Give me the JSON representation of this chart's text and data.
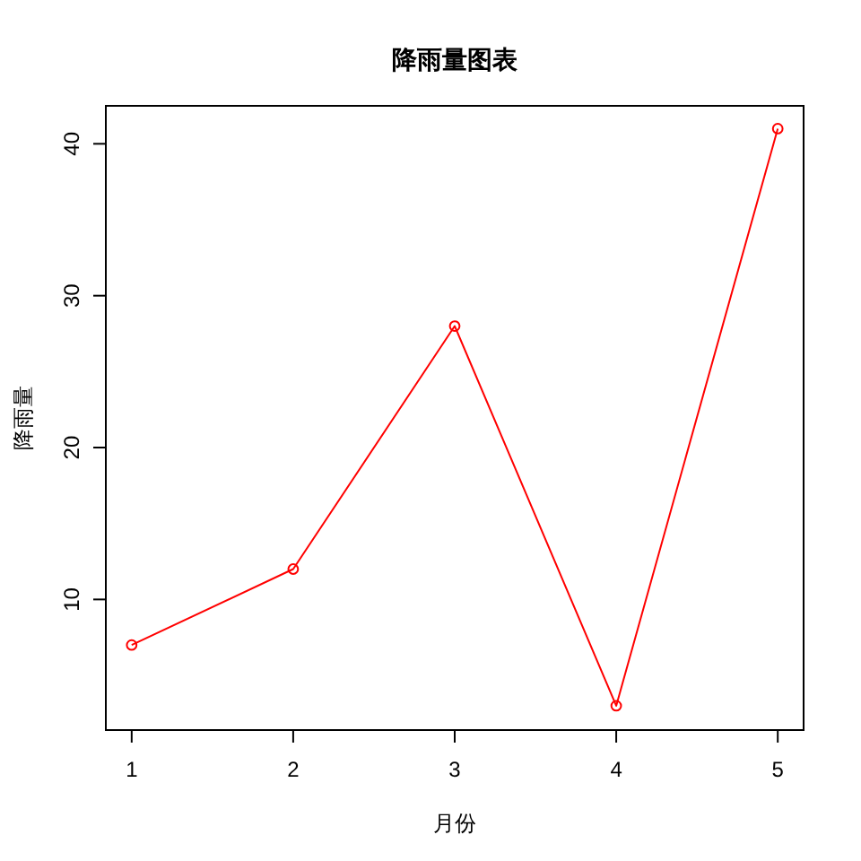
{
  "chart_data": {
    "type": "line",
    "title": "降雨量图表",
    "xlabel": "月份",
    "ylabel": "降雨量",
    "x": [
      1,
      2,
      3,
      4,
      5
    ],
    "series": [
      {
        "color": "#ff0000",
        "values": [
          7,
          12,
          28,
          3,
          41
        ]
      }
    ],
    "xlim": [
      0.84,
      5.16
    ],
    "ylim": [
      1.4,
      42.5
    ],
    "xticks": [
      1,
      2,
      3,
      4,
      5
    ],
    "yticks": [
      10,
      20,
      30,
      40
    ],
    "marker": "circle",
    "line_style": "solid"
  }
}
